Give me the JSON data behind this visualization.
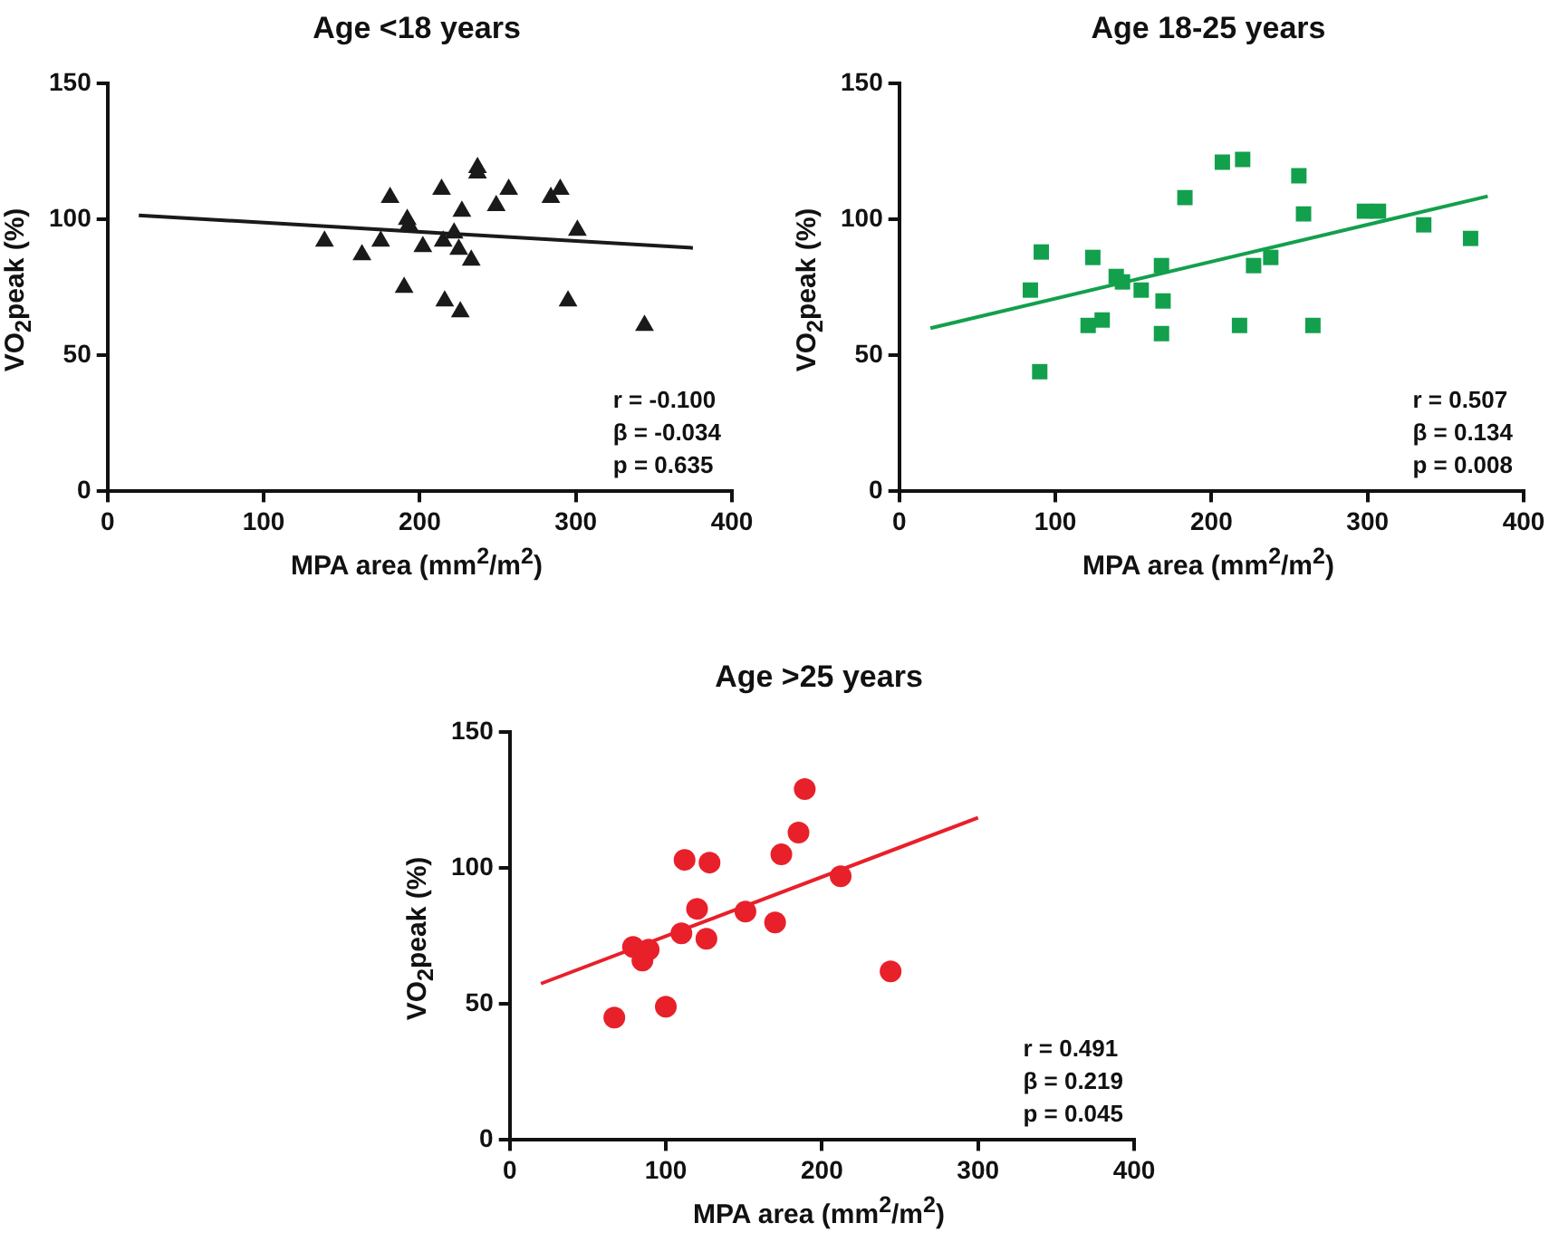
{
  "chart_data": [
    {
      "type": "scatter",
      "title": "Age <18 years",
      "xlabel": "MPA area (mm$^{2}$/m$^{2}$)",
      "ylabel": "VO$_{2}$peak (%)",
      "xlim": [
        0,
        400
      ],
      "xticks": [
        0,
        100,
        200,
        300,
        400
      ],
      "ylim": [
        0,
        150
      ],
      "yticks": [
        0,
        50,
        100,
        150
      ],
      "grid": false,
      "legend": false,
      "annotations": [
        "r = -0.100",
        "β = -0.034",
        "p = 0.635"
      ],
      "series": [
        {
          "type": "scatter",
          "color": "#1a1a1a",
          "marker": "triangle",
          "x": [
            139,
            163,
            175,
            181,
            190,
            192,
            193,
            202,
            214,
            216,
            215,
            222,
            225,
            226,
            227,
            233,
            237,
            237,
            249,
            257,
            284,
            290,
            301,
            295,
            344
          ],
          "values": [
            92,
            87,
            92,
            108,
            75,
            100,
            98,
            90,
            111,
            70,
            92,
            95,
            89,
            66,
            103,
            85,
            119,
            117,
            105,
            111,
            108,
            111,
            96,
            70,
            61
          ]
        },
        {
          "type": "line",
          "color": "#1a1a1a",
          "marker": "none",
          "x": [
            20,
            375
          ],
          "values": [
            101.5,
            89.5
          ]
        }
      ]
    },
    {
      "type": "scatter",
      "title": "Age 18-25 years",
      "xlabel": "MPA area (mm$^{2}$/m$^{2}$)",
      "ylabel": "VO$_{2}$peak (%)",
      "xlim": [
        0,
        400
      ],
      "xticks": [
        0,
        100,
        200,
        300,
        400
      ],
      "ylim": [
        0,
        150
      ],
      "yticks": [
        0,
        50,
        100,
        150
      ],
      "grid": false,
      "legend": false,
      "annotations": [
        "r = 0.507",
        "β = 0.134",
        "p = 0.008"
      ],
      "series": [
        {
          "type": "scatter",
          "color": "#12a04c",
          "marker": "square",
          "x": [
            84,
            91,
            90,
            124,
            121,
            130,
            139,
            143,
            155,
            168,
            169,
            168,
            183,
            207,
            220,
            218,
            227,
            238,
            256,
            259,
            265,
            298,
            307,
            336,
            366
          ],
          "values": [
            74,
            88,
            44,
            86,
            61,
            63,
            79,
            77,
            74,
            83,
            70,
            58,
            108,
            121,
            122,
            61,
            83,
            86,
            116,
            102,
            61,
            103,
            103,
            98,
            93
          ]
        },
        {
          "type": "line",
          "color": "#12a04c",
          "marker": "none",
          "x": [
            20,
            377
          ],
          "values": [
            60,
            108.5
          ]
        }
      ]
    },
    {
      "type": "scatter",
      "title": "Age >25 years",
      "xlabel": "MPA area (mm$^{2}$/m$^{2}$)",
      "ylabel": "VO$_{2}$peak (%)",
      "xlim": [
        0,
        400
      ],
      "xticks": [
        0,
        100,
        200,
        300,
        400
      ],
      "ylim": [
        0,
        150
      ],
      "yticks": [
        0,
        50,
        100,
        150
      ],
      "grid": false,
      "legend": false,
      "annotations": [
        "r = 0.491",
        "β = 0.219",
        "p = 0.045"
      ],
      "series": [
        {
          "type": "scatter",
          "color": "#e8202a",
          "marker": "circle",
          "x": [
            67,
            79,
            85,
            89,
            100,
            110,
            112,
            120,
            128,
            126,
            151,
            170,
            174,
            185,
            189,
            212,
            244
          ],
          "values": [
            45,
            71,
            66,
            70,
            49,
            76,
            103,
            85,
            102,
            74,
            84,
            80,
            105,
            113,
            129,
            97,
            62
          ]
        },
        {
          "type": "line",
          "color": "#e8202a",
          "marker": "none",
          "x": [
            20,
            300
          ],
          "values": [
            57.5,
            118.5
          ]
        }
      ]
    }
  ]
}
